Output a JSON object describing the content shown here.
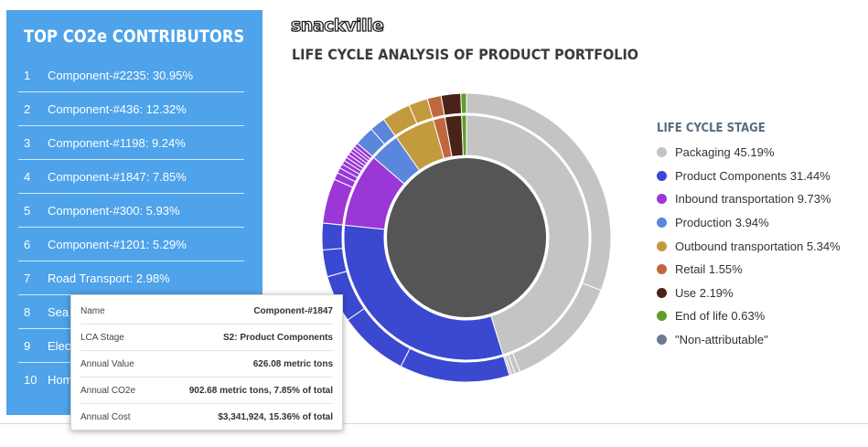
{
  "brand": "snackville",
  "page_title": "LIFE CYCLE ANALYSIS OF PRODUCT PORTFOLIO",
  "contributors": {
    "title": "TOP CO2e CONTRIBUTORS",
    "items": [
      {
        "rank": "1",
        "label": "Component-#2235: 30.95%"
      },
      {
        "rank": "2",
        "label": "Component-#436: 12.32%"
      },
      {
        "rank": "3",
        "label": "Component-#1198: 9.24%"
      },
      {
        "rank": "4",
        "label": "Component-#1847: 7.85%"
      },
      {
        "rank": "5",
        "label": "Component-#300: 5.93%"
      },
      {
        "rank": "6",
        "label": "Component-#1201: 5.29%"
      },
      {
        "rank": "7",
        "label": "Road Transport: 2.98%"
      },
      {
        "rank": "8",
        "label": "Sea"
      },
      {
        "rank": "9",
        "label": "Elec"
      },
      {
        "rank": "10",
        "label": "Hom"
      }
    ]
  },
  "legend": {
    "title": "LIFE CYCLE STAGE",
    "items": [
      {
        "label": "Packaging 45.19%",
        "color": "#c4c4c4"
      },
      {
        "label": "Product Components 31.44%",
        "color": "#3b48d0"
      },
      {
        "label": "Inbound transportation 9.73%",
        "color": "#9a37d6"
      },
      {
        "label": "Production 3.94%",
        "color": "#5a86db"
      },
      {
        "label": "Outbound transportation 5.34%",
        "color": "#c49a3f"
      },
      {
        "label": "Retail 1.55%",
        "color": "#c0673f"
      },
      {
        "label": "Use 2.19%",
        "color": "#4a2318"
      },
      {
        "label": "End of life 0.63%",
        "color": "#5f9e2a"
      },
      {
        "label": "\"Non-attributable\"",
        "color": "#6b7a90"
      }
    ]
  },
  "chart_data": {
    "type": "sunburst",
    "center_color": "#555555",
    "stages": [
      {
        "name": "Packaging",
        "value": 45.19,
        "color": "#c4c4c4",
        "children": [
          30.95,
          13.0,
          0.6,
          0.4,
          0.24
        ]
      },
      {
        "name": "Product Components",
        "value": 31.44,
        "color": "#3b48d0",
        "children": [
          12.32,
          7.85,
          5.29,
          3.0,
          2.98
        ]
      },
      {
        "name": "Inbound transportation",
        "value": 9.73,
        "color": "#9a37d6",
        "children": [
          5.0,
          0.8,
          0.6,
          0.5,
          0.45,
          0.42,
          0.4,
          0.4,
          0.38,
          0.35,
          0.43
        ]
      },
      {
        "name": "Production",
        "value": 3.94,
        "color": "#5a86db",
        "children": [
          2.2,
          1.74
        ]
      },
      {
        "name": "Outbound transportation",
        "value": 5.34,
        "color": "#c49a3f",
        "children": [
          3.2,
          2.14
        ]
      },
      {
        "name": "Retail",
        "value": 1.55,
        "color": "#c0673f",
        "children": [
          1.55
        ]
      },
      {
        "name": "Use",
        "value": 2.19,
        "color": "#4a2318",
        "children": [
          2.19
        ]
      },
      {
        "name": "End of life",
        "value": 0.63,
        "color": "#5f9e2a",
        "children": [
          0.63
        ]
      }
    ]
  },
  "tooltip": {
    "rows": [
      {
        "label": "Name",
        "value": "Component-#1847"
      },
      {
        "label": "LCA Stage",
        "value": "S2: Product Components"
      },
      {
        "label": "Annual Value",
        "value": "626.08 metric tons"
      },
      {
        "label": "Annual CO2e",
        "value": "902.68 metric tons, 7.85% of total"
      },
      {
        "label": "Annual Cost",
        "value": "$3,341,924, 15.36% of total"
      }
    ]
  }
}
